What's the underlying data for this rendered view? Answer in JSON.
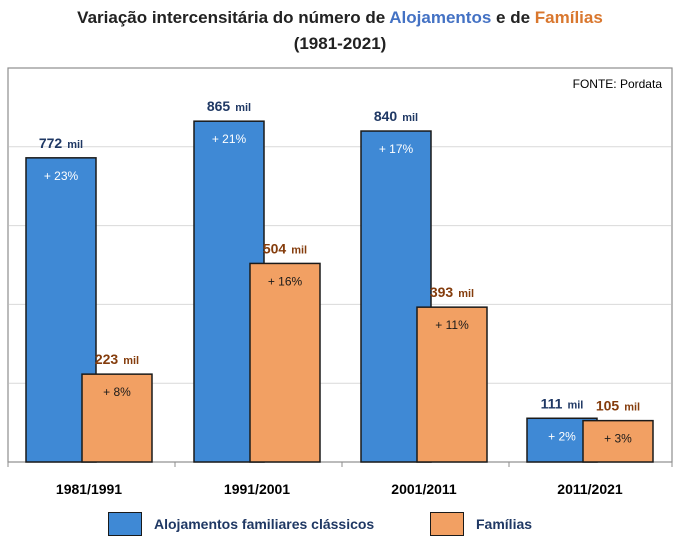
{
  "title": {
    "prefix": "Variação intercensitária do número de ",
    "series1": "Alojamentos",
    "middle": " e de ",
    "series2": "Famílias",
    "period": "(1981-2021)"
  },
  "source": "FONTE: Pordata",
  "colors": {
    "blue": "#3f89d5",
    "orange": "#f2a063",
    "blue_text": "#1f3864",
    "orange_text": "#843c0c",
    "frame": "#8e8e8e",
    "grid": "#d9d9d9"
  },
  "chart_data": {
    "type": "bar",
    "title": "Variação intercensitária do número de Alojamentos e de Famílias (1981-2021)",
    "categories": [
      "1981/1991",
      "1991/2001",
      "2001/2011",
      "2011/2021"
    ],
    "unit_label": "mil",
    "ylim": [
      0,
      1000
    ],
    "grid": true,
    "legend_position": "bottom",
    "series": [
      {
        "name": "Alojamentos familiares clássicos",
        "values": [
          772,
          865,
          840,
          111
        ],
        "value_labels": [
          "772",
          "865",
          "840",
          "111"
        ],
        "pct_labels": [
          "+ 23%",
          "+ 21%",
          "+ 17%",
          "+ 2%"
        ],
        "color": "#3f89d5",
        "text_color": "#1f3864"
      },
      {
        "name": "Famílias",
        "values": [
          223,
          504,
          393,
          105
        ],
        "value_labels": [
          "223",
          "504",
          "393",
          "105"
        ],
        "pct_labels": [
          "+ 8%",
          "+ 16%",
          "+ 11%",
          "+ 3%"
        ],
        "color": "#f2a063",
        "text_color": "#843c0c"
      }
    ]
  }
}
